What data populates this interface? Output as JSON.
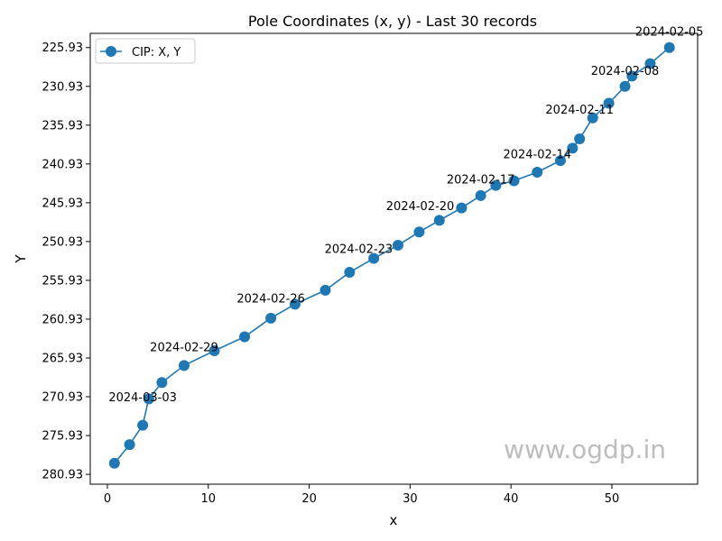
{
  "chart_data": {
    "type": "line",
    "title": "Pole Coordinates (x, y) - Last 30 records",
    "xlabel": "x",
    "ylabel": "Y",
    "xlim": [
      -1.7,
      58.5
    ],
    "ylim": [
      282.2,
      224.1
    ],
    "y_inverted": true,
    "x_ticks": [
      0,
      10,
      20,
      30,
      40,
      50
    ],
    "y_ticks": [
      225.93,
      230.93,
      235.93,
      240.93,
      245.93,
      250.93,
      255.93,
      260.93,
      265.93,
      270.93,
      275.93,
      280.93
    ],
    "y_tick_labels": [
      "225.93",
      "230.93",
      "235.93",
      "240.93",
      "245.93",
      "250.93",
      "255.93",
      "260.93",
      "265.93",
      "270.93",
      "275.93",
      "280.93"
    ],
    "grid": false,
    "legend_position": "top-left",
    "series": [
      {
        "name": "CIP: X, Y",
        "color": "#1f77b4",
        "marker": "circle",
        "x": [
          55.7,
          53.8,
          52.0,
          51.3,
          49.7,
          48.1,
          46.8,
          46.1,
          44.9,
          42.6,
          40.3,
          38.5,
          37.0,
          35.1,
          32.9,
          30.9,
          28.8,
          26.4,
          24.0,
          21.6,
          18.6,
          16.2,
          13.6,
          10.6,
          7.6,
          5.4,
          4.1,
          3.5,
          2.2,
          0.7
        ],
        "y": [
          225.93,
          228.0,
          229.6,
          230.93,
          233.1,
          235.0,
          237.7,
          238.9,
          240.5,
          242.0,
          243.1,
          243.7,
          245.0,
          246.6,
          248.2,
          249.7,
          251.4,
          253.1,
          254.9,
          257.2,
          259.0,
          260.8,
          263.2,
          265.0,
          266.9,
          269.1,
          271.2,
          274.6,
          277.1,
          279.5
        ]
      }
    ],
    "annotations": [
      {
        "text": "2024-02-05",
        "x": 55.7,
        "y": 225.93
      },
      {
        "text": "2024-02-08",
        "x": 51.3,
        "y": 230.93
      },
      {
        "text": "2024-02-11",
        "x": 46.8,
        "y": 235.95
      },
      {
        "text": "2024-02-14",
        "x": 42.6,
        "y": 241.7
      },
      {
        "text": "2024-02-17",
        "x": 37.0,
        "y": 244.95
      },
      {
        "text": "2024-02-20",
        "x": 31.0,
        "y": 248.4
      },
      {
        "text": "2024-02-23",
        "x": 24.9,
        "y": 253.9
      },
      {
        "text": "2024-02-26",
        "x": 16.2,
        "y": 260.3
      },
      {
        "text": "2024-02-29",
        "x": 7.6,
        "y": 266.6
      },
      {
        "text": "2024-03-03",
        "x": 3.5,
        "y": 273.0
      }
    ],
    "watermark": "www.ogdp.in"
  }
}
